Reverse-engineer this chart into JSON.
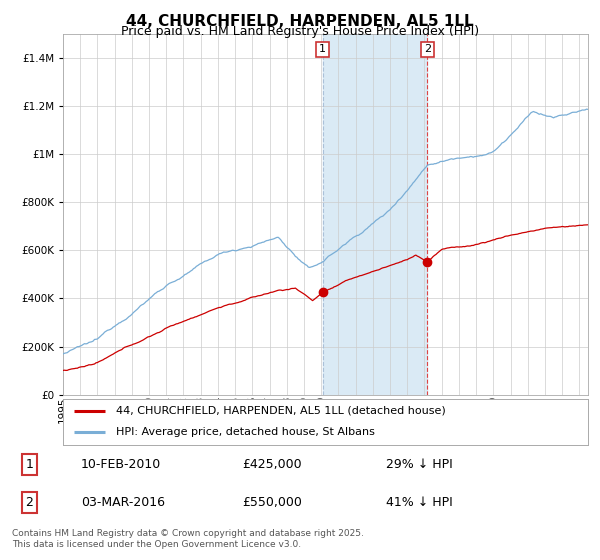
{
  "title": "44, CHURCHFIELD, HARPENDEN, AL5 1LL",
  "subtitle": "Price paid vs. HM Land Registry's House Price Index (HPI)",
  "red_line_color": "#cc0000",
  "blue_line_color": "#7aaed6",
  "shading_color": "#daeaf5",
  "sale1_date": 2010.08,
  "sale1_price": 425000,
  "sale2_date": 2016.17,
  "sale2_price": 550000,
  "legend_red": "44, CHURCHFIELD, HARPENDEN, AL5 1LL (detached house)",
  "legend_blue": "HPI: Average price, detached house, St Albans",
  "table_row1": [
    "1",
    "10-FEB-2010",
    "£425,000",
    "29% ↓ HPI"
  ],
  "table_row2": [
    "2",
    "03-MAR-2016",
    "£550,000",
    "41% ↓ HPI"
  ],
  "footer": "Contains HM Land Registry data © Crown copyright and database right 2025.\nThis data is licensed under the Open Government Licence v3.0.",
  "title_fontsize": 11,
  "subtitle_fontsize": 9,
  "tick_fontsize": 7.5,
  "legend_fontsize": 8,
  "table_fontsize": 9,
  "background_color": "#ffffff",
  "ylim": [
    0,
    1500000
  ],
  "xlim_start": 1995.0,
  "xlim_end": 2025.5
}
